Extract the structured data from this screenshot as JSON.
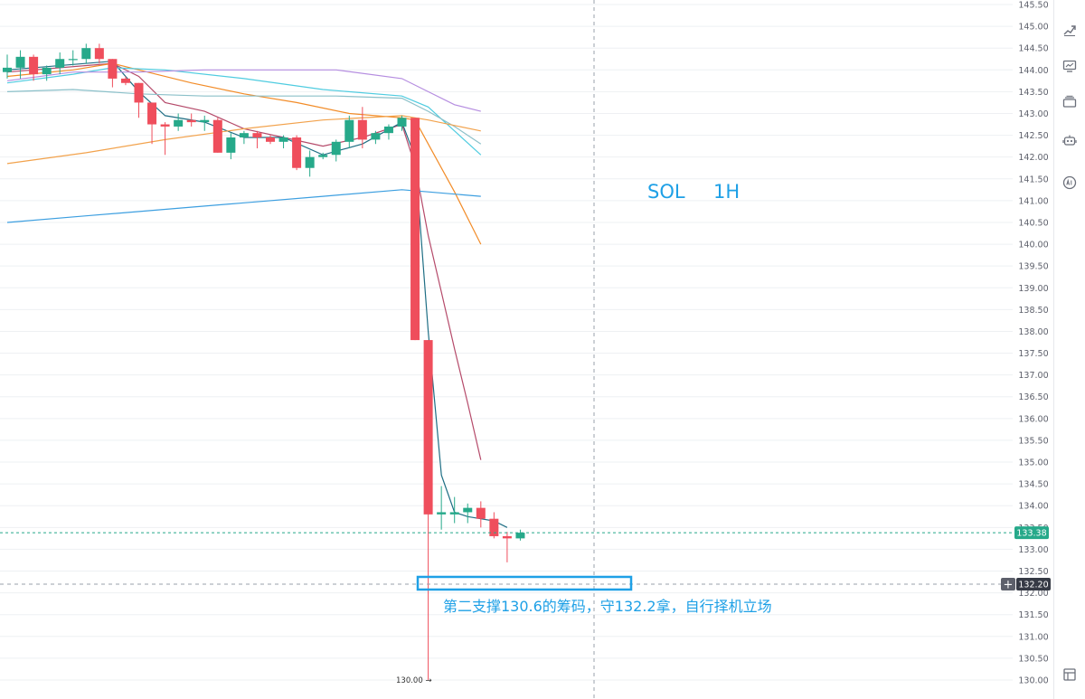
{
  "chart_data": {
    "type": "candlestick",
    "symbol_label": "SOL",
    "timeframe_label": "1H",
    "y_axis": {
      "min": 130.0,
      "max": 145.5,
      "step": 0.5,
      "tick_labels": [
        "145.50",
        "145.00",
        "144.50",
        "144.00",
        "143.50",
        "143.00",
        "142.50",
        "142.00",
        "141.50",
        "141.00",
        "140.50",
        "140.00",
        "139.50",
        "139.00",
        "138.50",
        "138.00",
        "137.50",
        "137.00",
        "136.50",
        "136.00",
        "135.50",
        "135.00",
        "134.50",
        "134.00",
        "133.50",
        "133.00",
        "132.50",
        "132.00",
        "131.50",
        "131.00",
        "130.50",
        "130.00"
      ]
    },
    "grid": true,
    "candles": [
      {
        "o": 143.95,
        "h": 144.35,
        "l": 143.8,
        "c": 144.05
      },
      {
        "o": 144.05,
        "h": 144.45,
        "l": 143.8,
        "c": 144.3
      },
      {
        "o": 144.3,
        "h": 144.35,
        "l": 143.75,
        "c": 143.9
      },
      {
        "o": 143.9,
        "h": 144.1,
        "l": 143.75,
        "c": 144.05
      },
      {
        "o": 144.05,
        "h": 144.4,
        "l": 143.9,
        "c": 144.25
      },
      {
        "o": 144.25,
        "h": 144.45,
        "l": 144.1,
        "c": 144.25
      },
      {
        "o": 144.25,
        "h": 144.6,
        "l": 144.15,
        "c": 144.5
      },
      {
        "o": 144.5,
        "h": 144.6,
        "l": 144.15,
        "c": 144.25
      },
      {
        "o": 144.25,
        "h": 144.25,
        "l": 143.6,
        "c": 143.8
      },
      {
        "o": 143.8,
        "h": 143.85,
        "l": 143.65,
        "c": 143.7
      },
      {
        "o": 143.7,
        "h": 143.7,
        "l": 142.9,
        "c": 143.25
      },
      {
        "o": 143.25,
        "h": 143.25,
        "l": 142.3,
        "c": 142.75
      },
      {
        "o": 142.75,
        "h": 142.8,
        "l": 142.05,
        "c": 142.7
      },
      {
        "o": 142.7,
        "h": 143.0,
        "l": 142.6,
        "c": 142.85
      },
      {
        "o": 142.85,
        "h": 143.0,
        "l": 142.7,
        "c": 142.8
      },
      {
        "o": 142.8,
        "h": 142.95,
        "l": 142.6,
        "c": 142.85
      },
      {
        "o": 142.85,
        "h": 142.9,
        "l": 142.1,
        "c": 142.1
      },
      {
        "o": 142.1,
        "h": 142.55,
        "l": 141.95,
        "c": 142.45
      },
      {
        "o": 142.45,
        "h": 142.6,
        "l": 142.3,
        "c": 142.55
      },
      {
        "o": 142.55,
        "h": 142.6,
        "l": 142.2,
        "c": 142.45
      },
      {
        "o": 142.45,
        "h": 142.5,
        "l": 142.3,
        "c": 142.35
      },
      {
        "o": 142.35,
        "h": 142.5,
        "l": 142.2,
        "c": 142.45
      },
      {
        "o": 142.45,
        "h": 142.5,
        "l": 141.7,
        "c": 141.75
      },
      {
        "o": 141.75,
        "h": 142.15,
        "l": 141.55,
        "c": 142.0
      },
      {
        "o": 142.0,
        "h": 142.1,
        "l": 141.95,
        "c": 142.05
      },
      {
        "o": 142.05,
        "h": 142.4,
        "l": 141.9,
        "c": 142.35
      },
      {
        "o": 142.35,
        "h": 142.95,
        "l": 142.2,
        "c": 142.85
      },
      {
        "o": 142.85,
        "h": 143.15,
        "l": 142.2,
        "c": 142.4
      },
      {
        "o": 142.4,
        "h": 142.6,
        "l": 142.3,
        "c": 142.55
      },
      {
        "o": 142.55,
        "h": 142.75,
        "l": 142.4,
        "c": 142.7
      },
      {
        "o": 142.7,
        "h": 142.95,
        "l": 142.6,
        "c": 142.9
      },
      {
        "o": 142.9,
        "h": 142.9,
        "l": 137.8,
        "c": 137.8
      },
      {
        "o": 137.8,
        "h": 137.8,
        "l": 130.0,
        "c": 133.8
      },
      {
        "o": 133.8,
        "h": 134.45,
        "l": 133.45,
        "c": 133.85
      },
      {
        "o": 133.8,
        "h": 134.2,
        "l": 133.6,
        "c": 133.85
      },
      {
        "o": 133.85,
        "h": 134.05,
        "l": 133.6,
        "c": 133.95
      },
      {
        "o": 133.95,
        "h": 134.1,
        "l": 133.5,
        "c": 133.7
      },
      {
        "o": 133.7,
        "h": 133.85,
        "l": 133.25,
        "c": 133.3
      },
      {
        "o": 133.3,
        "h": 133.4,
        "l": 132.7,
        "c": 133.25
      },
      {
        "o": 133.25,
        "h": 133.45,
        "l": 133.2,
        "c": 133.38
      }
    ],
    "moving_averages": [
      {
        "color": "#b54a6a",
        "points": [
          [
            0,
            143.95
          ],
          [
            8,
            144.15
          ],
          [
            10,
            143.85
          ],
          [
            12,
            143.25
          ],
          [
            15,
            143.05
          ],
          [
            18,
            142.65
          ],
          [
            21,
            142.45
          ],
          [
            24,
            142.25
          ],
          [
            27,
            142.45
          ],
          [
            30,
            142.75
          ],
          [
            31,
            141.8
          ],
          [
            32,
            140.2
          ],
          [
            33,
            138.9
          ],
          [
            34,
            137.6
          ],
          [
            35,
            136.35
          ],
          [
            36,
            135.05
          ]
        ]
      },
      {
        "color": "#1e6e84",
        "points": [
          [
            0,
            144.0
          ],
          [
            8,
            144.2
          ],
          [
            10,
            143.5
          ],
          [
            12,
            142.95
          ],
          [
            15,
            142.8
          ],
          [
            18,
            142.45
          ],
          [
            21,
            142.45
          ],
          [
            24,
            142.05
          ],
          [
            27,
            142.3
          ],
          [
            30,
            142.8
          ],
          [
            31,
            142.0
          ],
          [
            32,
            138.0
          ],
          [
            33,
            134.7
          ],
          [
            34,
            133.85
          ],
          [
            35,
            133.75
          ],
          [
            36,
            133.7
          ],
          [
            37,
            133.65
          ],
          [
            38,
            133.5
          ]
        ]
      },
      {
        "color": "#f28c28",
        "points": [
          [
            0,
            143.85
          ],
          [
            5,
            144.0
          ],
          [
            8,
            144.15
          ],
          [
            10,
            144.0
          ],
          [
            14,
            143.7
          ],
          [
            18,
            143.45
          ],
          [
            22,
            143.25
          ],
          [
            26,
            143.0
          ],
          [
            30,
            142.9
          ],
          [
            31,
            142.85
          ],
          [
            32,
            142.3
          ],
          [
            34,
            141.2
          ],
          [
            36,
            140.0
          ]
        ]
      },
      {
        "color": "#4fcce0",
        "points": [
          [
            0,
            143.7
          ],
          [
            5,
            143.9
          ],
          [
            8,
            144.05
          ],
          [
            12,
            144.0
          ],
          [
            18,
            143.8
          ],
          [
            24,
            143.55
          ],
          [
            30,
            143.4
          ],
          [
            32,
            143.15
          ],
          [
            34,
            142.6
          ],
          [
            36,
            142.05
          ]
        ]
      },
      {
        "color": "#8bc0c9",
        "points": [
          [
            0,
            143.5
          ],
          [
            5,
            143.55
          ],
          [
            10,
            143.45
          ],
          [
            15,
            143.4
          ],
          [
            20,
            143.4
          ],
          [
            25,
            143.4
          ],
          [
            30,
            143.35
          ],
          [
            32,
            143.05
          ],
          [
            34,
            142.7
          ],
          [
            36,
            142.3
          ]
        ]
      },
      {
        "color": "#b58de0",
        "points": [
          [
            0,
            143.75
          ],
          [
            5,
            143.95
          ],
          [
            10,
            143.95
          ],
          [
            15,
            144.0
          ],
          [
            20,
            144.0
          ],
          [
            25,
            144.0
          ],
          [
            30,
            143.8
          ],
          [
            32,
            143.5
          ],
          [
            34,
            143.2
          ],
          [
            36,
            143.05
          ]
        ]
      },
      {
        "color": "#f2a24c",
        "points": [
          [
            0,
            141.85
          ],
          [
            6,
            142.1
          ],
          [
            12,
            142.4
          ],
          [
            18,
            142.65
          ],
          [
            24,
            142.85
          ],
          [
            30,
            142.95
          ],
          [
            32,
            142.85
          ],
          [
            36,
            142.6
          ]
        ]
      },
      {
        "color": "#3d9fe0",
        "points": [
          [
            0,
            140.5
          ],
          [
            6,
            140.65
          ],
          [
            12,
            140.8
          ],
          [
            18,
            140.95
          ],
          [
            24,
            141.1
          ],
          [
            30,
            141.25
          ],
          [
            32,
            141.2
          ],
          [
            36,
            141.1
          ]
        ]
      }
    ],
    "price_lines": {
      "current": {
        "value": 133.38,
        "label": "133.38",
        "color": "#26a98a"
      },
      "crosshair": {
        "value": 132.2,
        "label": "132.20"
      },
      "low_marker": {
        "value": 130.0,
        "label": "130.00 →"
      }
    },
    "annotation": {
      "text": "第二支撑130.6的筹码，守132.2拿，自行择机立场",
      "color": "#1ea0e6"
    },
    "colors": {
      "up": "#26a98a",
      "down": "#ef4e5c",
      "grid": "#eef0f3",
      "axis_text": "#5d606b",
      "box": "#1ea0e6"
    }
  },
  "toolbar": {
    "icons": [
      "trending-chart-icon",
      "monitor-icon",
      "stacked-cards-icon",
      "robot-icon",
      "ai-badge-icon",
      "layout-panel-icon"
    ]
  }
}
